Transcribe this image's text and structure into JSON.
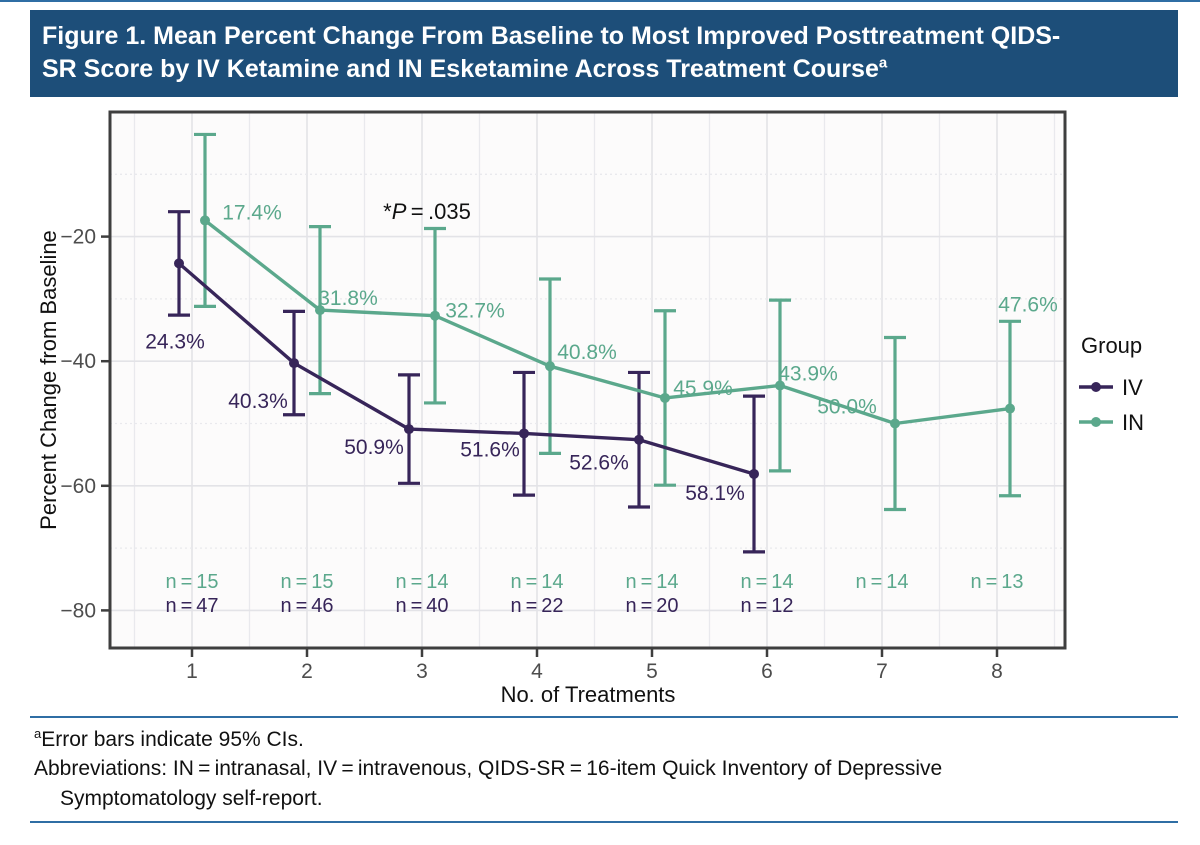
{
  "figure": {
    "title_line1": "Figure 1. Mean Percent Change From Baseline to Most Improved Posttreatment QIDS-",
    "title_line2": "SR Score by IV Ketamine and IN Esketamine Across Treatment Course",
    "title_superscript": "a",
    "title_bar_color": "#1D4E79"
  },
  "chart_data": {
    "type": "line",
    "xlabel": "No. of Treatments",
    "ylabel": "Percent Change from Baseline",
    "x": [
      1,
      2,
      3,
      4,
      5,
      6,
      7,
      8
    ],
    "x_tick_labels": [
      "1",
      "2",
      "3",
      "4",
      "5",
      "6",
      "7",
      "8"
    ],
    "yticks": [
      -20,
      -40,
      -60,
      -80
    ],
    "ytick_labels": [
      "−20",
      "−40",
      "−60",
      "−80"
    ],
    "ylim": [
      0,
      -86
    ],
    "grid": true,
    "annotation": {
      "prefix": "*",
      "italic": "P",
      "suffix": " = .035"
    },
    "legend": {
      "title": "Group",
      "position": "right",
      "items": [
        {
          "label": "IV"
        },
        {
          "label": "IN"
        }
      ]
    },
    "colors": {
      "iv": "#372559",
      "in": "#5BA88C",
      "frame": "#3E3E3E",
      "grid_major": "#E3E3E7",
      "grid_minor": "#E9E9ED",
      "tick_text": "#4D4D4D",
      "plot_bg": "#FCFBFB"
    },
    "series": [
      {
        "name": "IV",
        "color": "#372559",
        "points": [
          {
            "x": 1,
            "value": -24.3,
            "ci": [
              -16.0,
              -32.6
            ],
            "label": "24.3%",
            "n": "n = 47"
          },
          {
            "x": 2,
            "value": -40.3,
            "ci": [
              -32.0,
              -48.6
            ],
            "label": "40.3%",
            "n": "n = 46"
          },
          {
            "x": 3,
            "value": -50.9,
            "ci": [
              -42.2,
              -59.6
            ],
            "label": "50.9%",
            "n": "n = 40"
          },
          {
            "x": 4,
            "value": -51.6,
            "ci": [
              -41.8,
              -61.5
            ],
            "label": "51.6%",
            "n": "n = 22"
          },
          {
            "x": 5,
            "value": -52.6,
            "ci": [
              -41.8,
              -63.4
            ],
            "label": "52.6%",
            "n": "n = 20"
          },
          {
            "x": 6,
            "value": -58.1,
            "ci": [
              -45.6,
              -70.6
            ],
            "label": "58.1%",
            "n": "n = 12"
          }
        ]
      },
      {
        "name": "IN",
        "color": "#5BA88C",
        "points": [
          {
            "x": 1,
            "value": -17.4,
            "ci": [
              -3.6,
              -31.2
            ],
            "label": "17.4%",
            "n": "n = 15"
          },
          {
            "x": 2,
            "value": -31.8,
            "ci": [
              -18.4,
              -45.2
            ],
            "label": "31.8%",
            "n": "n = 15"
          },
          {
            "x": 3,
            "value": -32.7,
            "ci": [
              -18.7,
              -46.7
            ],
            "label": "32.7%",
            "n": "n = 14"
          },
          {
            "x": 4,
            "value": -40.8,
            "ci": [
              -26.8,
              -54.8
            ],
            "label": "40.8%",
            "n": "n = 14"
          },
          {
            "x": 5,
            "value": -45.9,
            "ci": [
              -31.9,
              -59.9
            ],
            "label": "45.9%",
            "n": "n = 14"
          },
          {
            "x": 6,
            "value": -43.9,
            "ci": [
              -30.2,
              -57.6
            ],
            "label": "43.9%",
            "n": "n = 14"
          },
          {
            "x": 7,
            "value": -50.0,
            "ci": [
              -36.2,
              -63.8
            ],
            "label": "50.0%",
            "n": "n = 14"
          },
          {
            "x": 8,
            "value": -47.6,
            "ci": [
              -33.6,
              -61.6
            ],
            "label": "47.6%",
            "n": "n = 13"
          }
        ]
      }
    ]
  },
  "footnotes": {
    "sup": "a",
    "line1": "Error bars indicate 95% CIs.",
    "line2": "Abbreviations: IN = intranasal, IV = intravenous, QIDS-SR = 16-item Quick Inventory of Depressive",
    "line3": "Symptomatology self-report."
  }
}
